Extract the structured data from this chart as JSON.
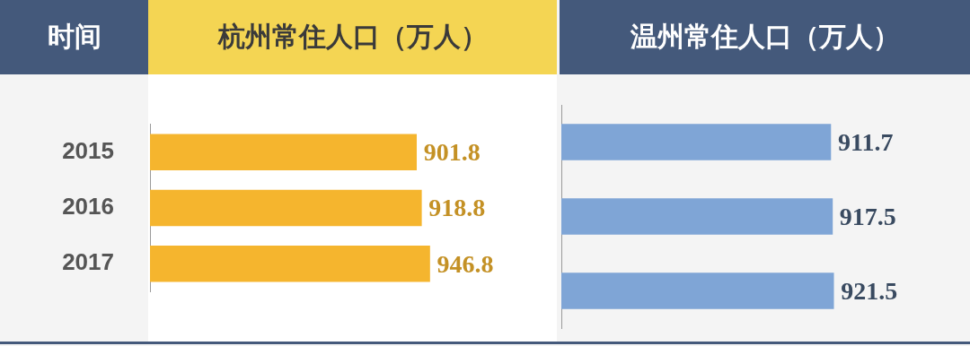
{
  "chart_data": [
    {
      "type": "bar",
      "orientation": "horizontal",
      "title": "杭州常住人口（万人）",
      "ylabel": "时间",
      "categories": [
        "2015",
        "2016",
        "2017"
      ],
      "values": [
        901.8,
        918.8,
        946.8
      ],
      "color": "#f5b52e",
      "data_labels": true,
      "tick_labels": "y",
      "grid": false,
      "legend": false
    },
    {
      "type": "bar",
      "orientation": "horizontal",
      "title": "温州常住人口（万人）",
      "categories": [
        "2015",
        "2016",
        "2017"
      ],
      "values": [
        911.7,
        917.5,
        921.5
      ],
      "color": "#7fa5d6",
      "data_labels": true,
      "tick_labels": false,
      "grid": false,
      "legend": false
    }
  ]
}
